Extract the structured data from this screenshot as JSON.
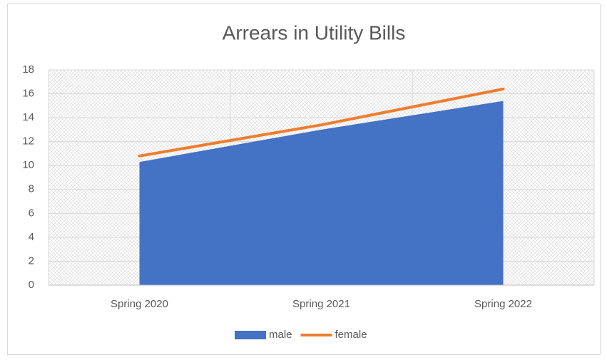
{
  "chart_data": {
    "type": "combo",
    "title": "Arrears in Utility Bills",
    "categories": [
      "Spring 2020",
      "Spring 2021",
      "Spring 2022"
    ],
    "series": [
      {
        "name": "male",
        "type": "area",
        "color": "#4472c4",
        "values": [
          10.3,
          13.0,
          15.4
        ]
      },
      {
        "name": "female",
        "type": "line",
        "color": "#ed7d31",
        "values": [
          10.8,
          13.4,
          16.4
        ]
      }
    ],
    "ylim": [
      0,
      18
    ],
    "yticks": [
      0,
      2,
      4,
      6,
      8,
      10,
      12,
      14,
      16,
      18
    ],
    "grid": true,
    "legend": "bottom"
  }
}
